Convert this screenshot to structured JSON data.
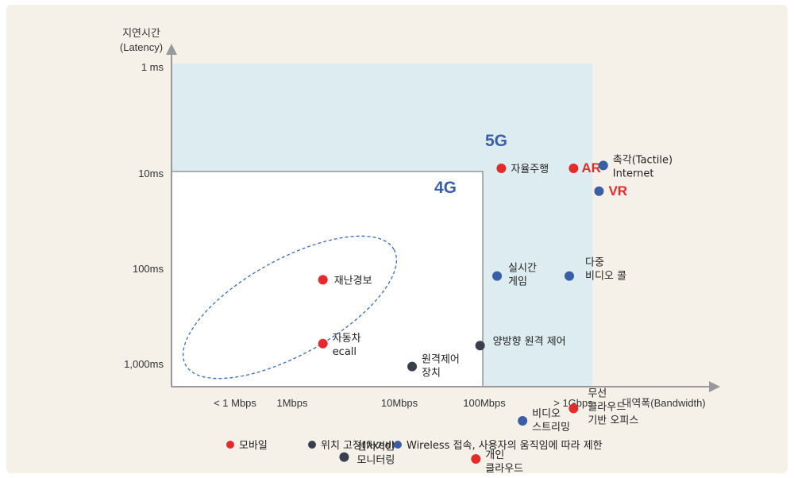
{
  "chart_data": {
    "type": "scatter",
    "ylabel": [
      "지연시간",
      "(Latency)"
    ],
    "xlabel": "대역폭(Bandwidth)",
    "x_ticks": [
      "< 1 Mbps",
      "1Mbps",
      "10Mbps",
      "100Mbps",
      "> 1Gbps"
    ],
    "y_ticks": [
      "1 ms",
      "10ms",
      "100ms",
      "1,000ms"
    ],
    "region_labels": [
      "5G",
      "4G"
    ],
    "legend": [
      {
        "key": "mobile",
        "label": "모바일",
        "color": "#e32b2b"
      },
      {
        "key": "fixed",
        "label": "위치 고정(fixed)",
        "color": "#3b3f4c"
      },
      {
        "key": "wireless",
        "label": "Wireless 접속, 사용자의 움직임에 따라 제한",
        "color": "#3a5fa7"
      }
    ],
    "points": [
      {
        "label": [
          "자율주행"
        ],
        "cat": "mobile",
        "x": 1.2,
        "y": 1.05
      },
      {
        "label": [
          "AR"
        ],
        "cat": "mobile",
        "x": 2.05,
        "y": 1.05,
        "emph": true
      },
      {
        "label": [
          "촉각(Tactile)",
          "Internet"
        ],
        "cat": "wireless",
        "x": 2.4,
        "y": 1.02
      },
      {
        "label": [
          "VR"
        ],
        "cat": "wireless",
        "x": 2.35,
        "y": 1.29,
        "emph": true
      },
      {
        "label": [
          "재난경보"
        ],
        "cat": "mobile",
        "x": -0.9,
        "y": 2.22
      },
      {
        "label": [
          "실시간",
          "게임"
        ],
        "cat": "wireless",
        "x": 1.15,
        "y": 2.18
      },
      {
        "label": [
          "다중",
          "비디오 콜"
        ],
        "cat": "wireless",
        "x": 2.0,
        "y": 2.18
      },
      {
        "label": [
          "자동차",
          "ecall"
        ],
        "cat": "mobile",
        "x": -0.9,
        "y": 2.89
      },
      {
        "label": [
          "양방향 원격 제어"
        ],
        "cat": "fixed",
        "x": 0.95,
        "y": 2.91
      },
      {
        "label": [
          "원격제어",
          "장치"
        ],
        "cat": "fixed",
        "x": 0.15,
        "y": 3.13
      },
      {
        "label": [
          "무선",
          "클라우드",
          "기반 오피스"
        ],
        "cat": "mobile",
        "x": 2.05,
        "y": 3.57
      },
      {
        "label": [
          "비디오",
          "스트리밍"
        ],
        "cat": "wireless",
        "x": 1.45,
        "y": 3.7
      },
      {
        "label": [
          "센서기반",
          "모니터링"
        ],
        "cat": "fixed",
        "x": -0.65,
        "y": 4.08
      },
      {
        "label": [
          "개인",
          "클라우드"
        ],
        "cat": "mobile",
        "x": 0.9,
        "y": 4.1
      }
    ]
  }
}
